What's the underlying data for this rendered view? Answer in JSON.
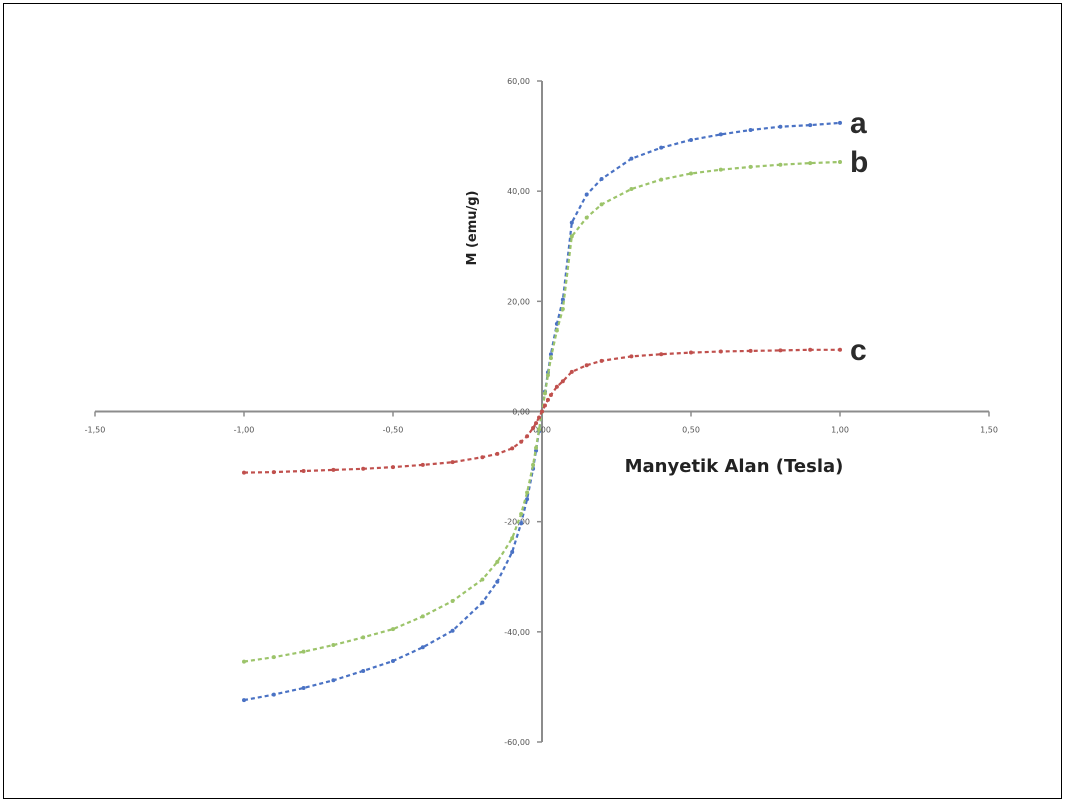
{
  "chart_data": {
    "type": "line",
    "xlabel": "Manyetik Alan (Tesla)",
    "ylabel": "M (emu/g)",
    "xlim": [
      -1.5,
      1.5
    ],
    "ylim": [
      -60,
      60
    ],
    "x_ticks": [
      "-1,50",
      "-1,00",
      "-0,50",
      "0,00",
      "0,50",
      "1,00",
      "1,50"
    ],
    "y_ticks": [
      "60,00",
      "40,00",
      "20,00",
      "0,00",
      "-20,00",
      "-40,00",
      "-60,00"
    ],
    "x_tick_values": [
      -1.5,
      -1.0,
      -0.5,
      0.0,
      0.5,
      1.0,
      1.5
    ],
    "y_tick_values": [
      60,
      40,
      20,
      0,
      -20,
      -40,
      -60
    ],
    "grid": false,
    "series": [
      {
        "name": "a",
        "color": "#4a72c4",
        "x": [
          -1.0,
          -0.9,
          -0.8,
          -0.7,
          -0.6,
          -0.5,
          -0.4,
          -0.3,
          -0.2,
          -0.15,
          -0.1,
          -0.07,
          -0.05,
          -0.03,
          -0.02,
          -0.01,
          0.0,
          0.01,
          0.02,
          0.03,
          0.05,
          0.07,
          0.1,
          0.15,
          0.2,
          0.3,
          0.4,
          0.5,
          0.6,
          0.7,
          0.8,
          0.9,
          1.0
        ],
        "y": [
          -52.4,
          -51.4,
          -50.2,
          -48.8,
          -47.1,
          -45.3,
          -42.8,
          -39.8,
          -34.7,
          -30.9,
          -25.5,
          -20.3,
          -15.9,
          -10.4,
          -7.1,
          -3.6,
          0.0,
          3.6,
          7.1,
          10.4,
          15.9,
          20.3,
          34.3,
          39.4,
          42.2,
          45.9,
          47.9,
          49.3,
          50.3,
          51.1,
          51.7,
          52.0,
          52.4
        ]
      },
      {
        "name": "b",
        "color": "#9cc46a",
        "x": [
          -1.0,
          -0.9,
          -0.8,
          -0.7,
          -0.6,
          -0.5,
          -0.4,
          -0.3,
          -0.2,
          -0.15,
          -0.1,
          -0.07,
          -0.05,
          -0.03,
          -0.02,
          -0.01,
          0.0,
          0.01,
          0.02,
          0.03,
          0.05,
          0.07,
          0.1,
          0.15,
          0.2,
          0.3,
          0.4,
          0.5,
          0.6,
          0.7,
          0.8,
          0.9,
          1.0
        ],
        "y": [
          -45.4,
          -44.6,
          -43.6,
          -42.4,
          -41.0,
          -39.5,
          -37.2,
          -34.4,
          -30.5,
          -27.3,
          -23.0,
          -18.6,
          -14.7,
          -9.7,
          -6.6,
          -3.3,
          0.0,
          3.3,
          6.6,
          9.7,
          14.7,
          18.6,
          31.8,
          35.2,
          37.6,
          40.4,
          42.1,
          43.2,
          43.9,
          44.4,
          44.8,
          45.1,
          45.3
        ]
      },
      {
        "name": "c",
        "color": "#c0504d",
        "x": [
          -1.0,
          -0.9,
          -0.8,
          -0.7,
          -0.6,
          -0.5,
          -0.4,
          -0.3,
          -0.2,
          -0.15,
          -0.1,
          -0.07,
          -0.05,
          -0.03,
          -0.02,
          -0.01,
          0.0,
          0.01,
          0.02,
          0.03,
          0.05,
          0.07,
          0.1,
          0.15,
          0.2,
          0.3,
          0.4,
          0.5,
          0.6,
          0.7,
          0.8,
          0.9,
          1.0
        ],
        "y": [
          -11.1,
          -11.0,
          -10.8,
          -10.6,
          -10.4,
          -10.1,
          -9.7,
          -9.2,
          -8.3,
          -7.7,
          -6.7,
          -5.5,
          -4.5,
          -3.0,
          -2.1,
          -1.1,
          0.0,
          1.1,
          2.1,
          3.0,
          4.5,
          5.5,
          7.2,
          8.4,
          9.2,
          10.0,
          10.4,
          10.7,
          10.9,
          11.0,
          11.1,
          11.2,
          11.2
        ]
      }
    ]
  }
}
